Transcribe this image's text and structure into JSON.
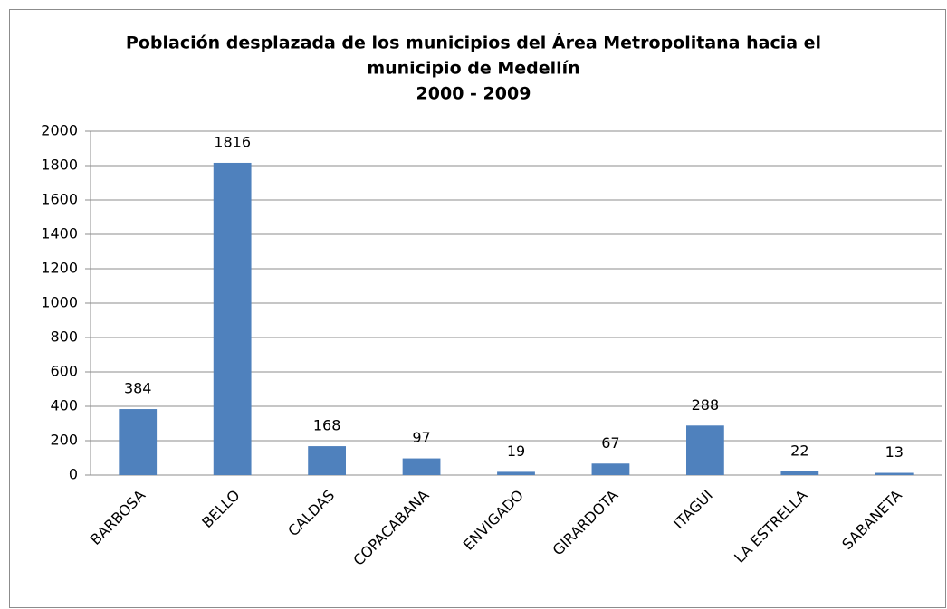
{
  "chart_data": {
    "type": "bar",
    "title": [
      "Población desplazada de los municipios del Área Metropolitana hacia el",
      "municipio de Medellín",
      "2000 - 2009"
    ],
    "categories": [
      "BARBOSA",
      "BELLO",
      "CALDAS",
      "COPACABANA",
      "ENVIGADO",
      "GIRARDOTA",
      "ITAGUI",
      "LA ESTRELLA",
      "SABANETA"
    ],
    "values": [
      384,
      1816,
      168,
      97,
      19,
      67,
      288,
      22,
      13
    ],
    "color": "#4f81bd",
    "ylim": [
      0,
      2000
    ],
    "yticks": [
      0,
      200,
      400,
      600,
      800,
      1000,
      1200,
      1400,
      1600,
      1800,
      2000
    ],
    "grid": true
  }
}
